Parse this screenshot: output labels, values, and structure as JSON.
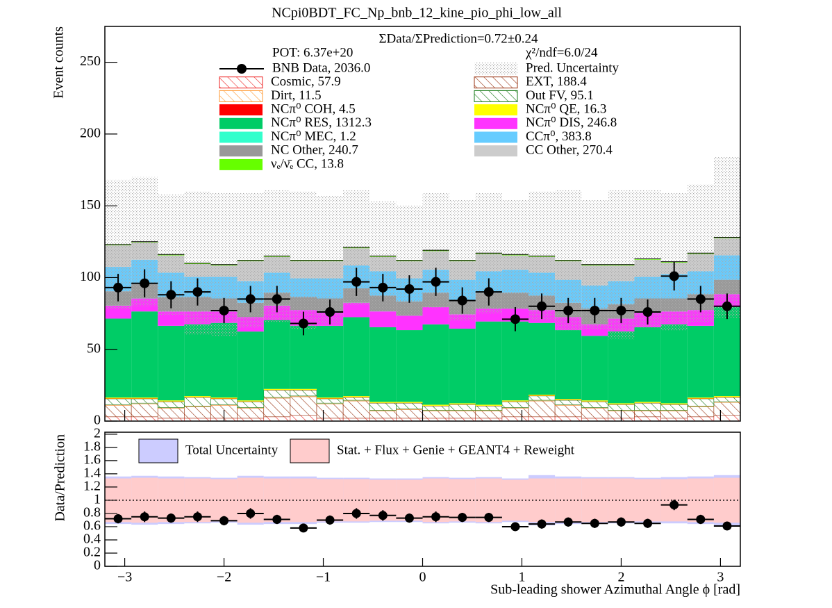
{
  "chart_data": [
    {
      "type": "histogram",
      "title": "NCpi0BDT_FC_Np_bnb_12_kine_pio_phi_low_all",
      "ylabel": "Event counts",
      "ratio_text": "ΣData/ΣPrediction=0.72±0.24",
      "pot_text": "POT: 6.37e+20",
      "chi2_text": "χ²/ndf=6.0/24",
      "xlim": [
        -3.2,
        3.2
      ],
      "ylim": [
        0,
        275
      ],
      "yticks": [
        0,
        50,
        100,
        150,
        200,
        250
      ],
      "bins": [
        -3.2,
        -2.9333,
        -2.6667,
        -2.4,
        -2.1333,
        -1.8667,
        -1.6,
        -1.3333,
        -1.0667,
        -0.8,
        -0.5333,
        -0.2667,
        0,
        0.2667,
        0.5333,
        0.8,
        1.0667,
        1.3333,
        1.6,
        1.8667,
        2.1333,
        2.4,
        2.6667,
        2.9333,
        3.2
      ],
      "series": [
        {
          "name": "Cosmic, 57.9",
          "color": "#ee2222",
          "hatch": true,
          "values": [
            3,
            3,
            2,
            2,
            2,
            2,
            3,
            4,
            2,
            2,
            2,
            2,
            2,
            2,
            2,
            3,
            3,
            3,
            2,
            2,
            3,
            2,
            3,
            4
          ]
        },
        {
          "name": "EXT, 188.4",
          "color": "#993311",
          "hatch": true,
          "values": [
            8,
            9,
            7,
            8,
            9,
            7,
            13,
            13,
            10,
            12,
            5,
            6,
            5,
            5,
            5,
            6,
            11,
            8,
            7,
            5,
            4,
            5,
            7,
            9
          ]
        },
        {
          "name": "Dirt, 11.5",
          "color": "#ff9933",
          "hatch": true,
          "values": [
            0.5,
            0.5,
            0.5,
            0.5,
            0.5,
            0.5,
            0.5,
            0.5,
            0.5,
            0.5,
            0.5,
            0.5,
            0.5,
            0.5,
            0.5,
            0.5,
            0.5,
            0.5,
            0.5,
            0.5,
            0.5,
            0.5,
            0.5,
            0.5
          ]
        },
        {
          "name": "Out FV, 95.1",
          "color": "#117711",
          "hatch": true,
          "values": [
            4,
            3,
            4,
            6,
            4,
            4,
            5,
            4,
            3,
            2,
            5,
            4,
            3,
            4,
            3,
            4,
            3,
            3,
            4,
            4,
            5,
            4,
            5,
            3
          ]
        },
        {
          "name": "NCπ⁰ COH,  4.5",
          "color": "#ff0000",
          "hatch": false,
          "values": [
            0.2,
            0.2,
            0.2,
            0.2,
            0.2,
            0.2,
            0.2,
            0.2,
            0.2,
            0.2,
            0.2,
            0.2,
            0.2,
            0.2,
            0.2,
            0.2,
            0.2,
            0.2,
            0.2,
            0.2,
            0.2,
            0.2,
            0.2,
            0.2
          ]
        },
        {
          "name": "NCπ⁰ QE,  16.3",
          "color": "#ffff00",
          "hatch": false,
          "values": [
            0.7,
            0.7,
            0.7,
            0.7,
            0.7,
            0.7,
            0.7,
            0.7,
            0.7,
            0.7,
            0.7,
            0.7,
            0.7,
            0.7,
            0.7,
            0.7,
            0.7,
            0.7,
            0.7,
            0.7,
            0.7,
            0.7,
            0.7,
            0.7
          ]
        },
        {
          "name": "NCπ⁰ RES,  1312.3",
          "color": "#00cc66",
          "hatch": false,
          "values": [
            55,
            60,
            52,
            50,
            52,
            48,
            48,
            44,
            50,
            55,
            52,
            50,
            56,
            52,
            58,
            55,
            50,
            48,
            45,
            50,
            52,
            55,
            50,
            62
          ]
        },
        {
          "name": "NCπ⁰ DIS,  246.8",
          "color": "#ff33ff",
          "hatch": false,
          "values": [
            9,
            9,
            10,
            9,
            8,
            10,
            10,
            11,
            9,
            10,
            11,
            10,
            12,
            10,
            9,
            9,
            9,
            9,
            8,
            9,
            10,
            9,
            11,
            9
          ]
        },
        {
          "name": "NCπ⁰ MEC,  1.2",
          "color": "#33ffcc",
          "hatch": false,
          "values": [
            0.05,
            0.05,
            0.05,
            0.05,
            0.05,
            0.05,
            0.05,
            0.05,
            0.05,
            0.05,
            0.05,
            0.05,
            0.05,
            0.05,
            0.05,
            0.05,
            0.05,
            0.05,
            0.05,
            0.05,
            0.05,
            0.05,
            0.05,
            0.05
          ]
        },
        {
          "name": "NC Other, 240.7",
          "color": "#999999",
          "hatch": false,
          "values": [
            10,
            10,
            10,
            10,
            9,
            10,
            9,
            9,
            10,
            10,
            11,
            10,
            10,
            10,
            11,
            11,
            10,
            10,
            11,
            10,
            10,
            9,
            11,
            10
          ]
        },
        {
          "name": "CCπ⁰, 383.8",
          "color": "#66ccff",
          "hatch": false,
          "values": [
            17,
            17,
            17,
            14,
            15,
            15,
            14,
            13,
            14,
            16,
            17,
            16,
            16,
            14,
            15,
            16,
            16,
            16,
            16,
            16,
            15,
            17,
            16,
            17
          ]
        },
        {
          "name": "CC Other, 270.4",
          "color": "#cccccc",
          "hatch": false,
          "values": [
            15,
            12,
            12,
            9,
            8,
            14,
            11,
            12,
            12,
            12,
            10,
            12,
            13,
            13,
            12,
            10,
            11,
            13,
            14,
            11,
            12,
            8,
            12,
            12
          ]
        },
        {
          "name": "νₑ/ν̄ₑ CC, 13.8",
          "color": "#66ff00",
          "hatch": false,
          "values": [
            0.6,
            0.6,
            0.6,
            0.6,
            0.6,
            0.6,
            0.6,
            0.6,
            0.6,
            0.6,
            0.6,
            0.6,
            0.6,
            0.6,
            0.6,
            0.6,
            0.6,
            0.6,
            0.6,
            0.6,
            0.6,
            0.6,
            0.6,
            0.6
          ]
        }
      ],
      "uncertainty": {
        "name": "Pred. Uncertainty",
        "color": "#999999",
        "values": [
          45,
          45,
          42,
          50,
          50,
          47,
          46,
          48,
          45,
          40,
          38,
          38,
          40,
          42,
          42,
          38,
          45,
          49,
          45,
          52,
          48,
          48,
          48,
          56
        ]
      },
      "data": {
        "name": "BNB Data, 2036.0",
        "color": "#000000",
        "values": [
          93,
          96,
          88,
          90,
          77,
          85,
          85,
          68,
          76,
          97,
          93,
          92,
          97,
          84,
          90,
          71,
          80,
          77,
          77,
          77,
          76,
          101,
          85,
          80
        ],
        "errors": [
          9.6,
          9.8,
          9.4,
          9.5,
          8.8,
          9.2,
          9.2,
          8.2,
          8.7,
          9.8,
          9.6,
          9.6,
          9.8,
          9.2,
          9.5,
          8.4,
          8.9,
          8.8,
          8.8,
          8.8,
          8.7,
          10,
          9.2,
          8.9
        ]
      }
    },
    {
      "type": "ratio",
      "xlabel": "Sub-leading shower Azimuthal Angle ϕ [rad]",
      "ylabel": "Data/Prediction",
      "xlim": [
        -3.2,
        3.2
      ],
      "ylim": [
        0,
        2.03
      ],
      "xticks": [
        {
          "value": -3,
          "label": "−3"
        },
        {
          "value": -2,
          "label": "−2"
        },
        {
          "value": -1,
          "label": "−1"
        },
        0,
        1,
        2,
        3
      ],
      "yticks": [
        0,
        0.2,
        0.4,
        0.6,
        0.8,
        1,
        1.2,
        1.4,
        1.6,
        1.8,
        2
      ],
      "reference_line": 1,
      "bands": [
        {
          "name": "Total Uncertainty",
          "color": "#ccccff",
          "values": [
            0.36,
            0.37,
            0.36,
            0.35,
            0.34,
            0.37,
            0.36,
            0.36,
            0.34,
            0.34,
            0.33,
            0.33,
            0.35,
            0.34,
            0.35,
            0.33,
            0.38,
            0.36,
            0.35,
            0.35,
            0.34,
            0.35,
            0.36,
            0.38
          ]
        },
        {
          "name": "Stat. + Flux + Genie + GEANT4 + Reweight",
          "color": "#ffcccc",
          "values": [
            0.33,
            0.34,
            0.33,
            0.33,
            0.32,
            0.34,
            0.33,
            0.33,
            0.32,
            0.32,
            0.31,
            0.31,
            0.33,
            0.32,
            0.33,
            0.31,
            0.33,
            0.33,
            0.33,
            0.33,
            0.32,
            0.32,
            0.33,
            0.34
          ]
        }
      ],
      "data": {
        "values": [
          0.72,
          0.75,
          0.73,
          0.75,
          0.69,
          0.8,
          0.71,
          0.58,
          0.7,
          0.8,
          0.77,
          0.73,
          0.75,
          0.74,
          0.74,
          0.6,
          0.64,
          0.67,
          0.65,
          0.67,
          0.65,
          0.93,
          0.71,
          0.61
        ],
        "errors": [
          0.07,
          0.08,
          0.07,
          0.08,
          0.07,
          0.08,
          0.07,
          0.06,
          0.07,
          0.08,
          0.08,
          0.07,
          0.08,
          0.07,
          0.07,
          0.06,
          0.07,
          0.07,
          0.07,
          0.07,
          0.07,
          0.08,
          0.07,
          0.06
        ]
      }
    }
  ]
}
